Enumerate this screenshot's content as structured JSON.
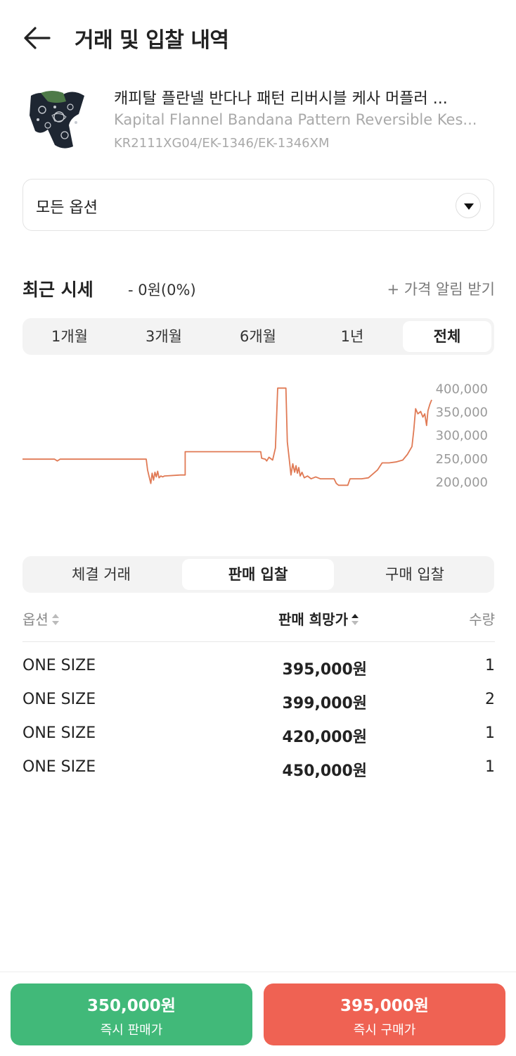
{
  "header": {
    "title": "거래 및 입찰 내역"
  },
  "product": {
    "name_ko": "캐피탈 플란넬 반다나 패턴 리버시블 케사 머플러 ...",
    "name_en": "Kapital Flannel Bandana Pattern Reversible Kes...",
    "code": "KR2111XG04/EK-1346/EK-1346XM"
  },
  "option_select": {
    "value": "모든 옵션"
  },
  "recent_price": {
    "title": "최근 시세",
    "change": "- 0원(0%)",
    "alert_link": "+ 가격 알림 받기"
  },
  "period_tabs": [
    "1개월",
    "3개월",
    "6개월",
    "1년",
    "전체"
  ],
  "period_active": "전체",
  "chart_data": {
    "type": "line",
    "series": [
      {
        "color": "#e07a55",
        "points": [
          [
            0,
            248000
          ],
          [
            7,
            248000
          ],
          [
            7.6,
            244000
          ],
          [
            8.2,
            248000
          ],
          [
            27,
            248000
          ],
          [
            27.3,
            225000
          ],
          [
            27.6,
            212000
          ],
          [
            28.0,
            196000
          ],
          [
            28.3,
            218000
          ],
          [
            28.6,
            203000
          ],
          [
            28.9,
            220000
          ],
          [
            29.2,
            210000
          ],
          [
            29.5,
            222000
          ],
          [
            29.8,
            208000
          ],
          [
            30.2,
            212000
          ],
          [
            30.6,
            210000
          ],
          [
            31,
            212000
          ],
          [
            34.5,
            214000
          ],
          [
            35.5,
            214000
          ],
          [
            35.5,
            264000
          ],
          [
            52,
            264000
          ],
          [
            52.2,
            250000
          ],
          [
            53,
            248000
          ],
          [
            53.3,
            244000
          ],
          [
            53.8,
            252000
          ],
          [
            54.6,
            246000
          ],
          [
            55.2,
            272000
          ],
          [
            55.7,
            400000
          ],
          [
            57.5,
            400000
          ],
          [
            57.8,
            285000
          ],
          [
            58.2,
            250000
          ],
          [
            58.6,
            214000
          ],
          [
            59,
            238000
          ],
          [
            59.4,
            220000
          ],
          [
            59.7,
            234000
          ],
          [
            60.0,
            218000
          ],
          [
            60.3,
            230000
          ],
          [
            60.6,
            212000
          ],
          [
            61,
            220000
          ],
          [
            61.5,
            208000
          ],
          [
            62.2,
            212000
          ],
          [
            63,
            206000
          ],
          [
            64,
            210000
          ],
          [
            65,
            206000
          ],
          [
            68,
            206000
          ],
          [
            68.5,
            196000
          ],
          [
            69,
            192000
          ],
          [
            71,
            192000
          ],
          [
            71.5,
            206000
          ],
          [
            74,
            206000
          ],
          [
            75.5,
            208000
          ],
          [
            77.5,
            225000
          ],
          [
            78.5,
            240000
          ],
          [
            80,
            240000
          ],
          [
            81.5,
            242000
          ],
          [
            83,
            246000
          ],
          [
            84,
            258000
          ],
          [
            85,
            275000
          ],
          [
            85.4,
            310000
          ],
          [
            85.8,
            356000
          ],
          [
            86.3,
            345000
          ],
          [
            86.9,
            350000
          ],
          [
            87.4,
            338000
          ],
          [
            87.8,
            345000
          ],
          [
            88.2,
            320000
          ],
          [
            88.5,
            352000
          ],
          [
            88.9,
            365000
          ],
          [
            89.3,
            375000
          ]
        ]
      }
    ],
    "y_ticks": [
      "400,000",
      "350,000",
      "300,000",
      "250,000",
      "200,000"
    ],
    "ylim": [
      188000,
      405000
    ]
  },
  "trade_tabs": [
    "체결 거래",
    "판매 입찰",
    "구매 입찰"
  ],
  "trade_active": "판매 입찰",
  "table": {
    "headers": {
      "option": "옵션",
      "price": "판매 희망가",
      "qty": "수량"
    },
    "rows": [
      {
        "option": "ONE SIZE",
        "price": "395,000원",
        "qty": "1"
      },
      {
        "option": "ONE SIZE",
        "price": "399,000원",
        "qty": "2"
      },
      {
        "option": "ONE SIZE",
        "price": "420,000원",
        "qty": "1"
      },
      {
        "option": "ONE SIZE",
        "price": "450,000원",
        "qty": "1"
      }
    ]
  },
  "bottom": {
    "sell_price": "350,000원",
    "sell_label": "즉시 판매가",
    "buy_price": "395,000원",
    "buy_label": "즉시 구매가",
    "sell_color": "#41b979",
    "buy_color": "#ef6253"
  }
}
